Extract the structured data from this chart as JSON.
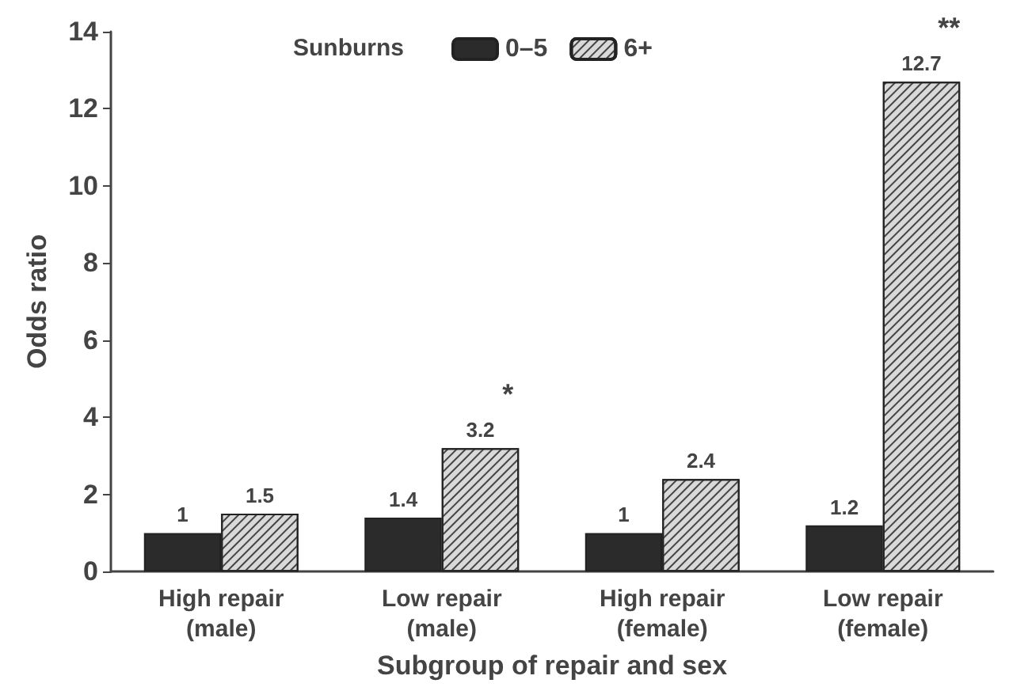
{
  "chart_data": {
    "type": "bar",
    "xlabel": "Subgroup of repair and sex",
    "ylabel": "Odds ratio",
    "legend_title": "Sunburns",
    "categories": [
      "High repair\n(male)",
      "Low repair\n(male)",
      "High repair\n(female)",
      "Low repair\n(female)"
    ],
    "series": [
      {
        "name": "0–5",
        "color": "#2b2b2b",
        "values": [
          1,
          1.4,
          1,
          1.2
        ]
      },
      {
        "name": "6+",
        "color": "#d9d9d9",
        "values": [
          1.5,
          3.2,
          2.4,
          12.7
        ]
      }
    ],
    "ylim": [
      0,
      14
    ],
    "yticks": [
      0,
      2,
      4,
      6,
      8,
      10,
      12,
      14
    ],
    "grid": false,
    "legend": "top",
    "data_labels": true,
    "annotations": [
      {
        "text": "*",
        "x": "Low repair\n(male)",
        "y": 3.2
      },
      {
        "text": "**",
        "x": "Low repair\n(female)",
        "y": 12.7
      }
    ]
  }
}
